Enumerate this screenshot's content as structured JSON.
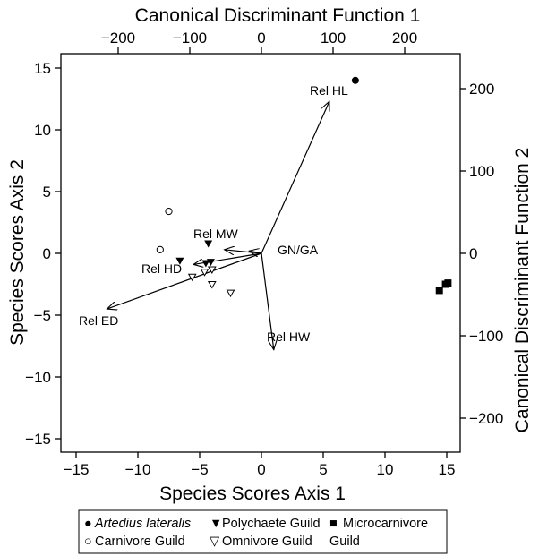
{
  "chart_data": {
    "type": "scatter",
    "x_label": "Species Scores Axis 1",
    "y_label": "Species Scores Axis 2",
    "x2_label": "Canonical Discriminant Function 1",
    "y2_label": "Canonical Discriminant Function 2",
    "xlim": [
      -16,
      17.5
    ],
    "ylim": [
      -16,
      16
    ],
    "x_ticks": [
      -15,
      -10,
      -5,
      0,
      5,
      10,
      15
    ],
    "y_ticks": [
      15,
      10,
      5,
      0,
      -5,
      -10,
      -15
    ],
    "x2_ticks": [
      -200,
      -100,
      0,
      100,
      200
    ],
    "y2_ticks": [
      200,
      100,
      0,
      -100,
      -200
    ],
    "x_tick_labels": [
      "−15",
      "−10",
      "−5",
      "0",
      "5",
      "10",
      "15"
    ],
    "y_tick_labels": [
      "15",
      "10",
      "5",
      "0",
      "−5",
      "−10",
      "−15"
    ],
    "x2_tick_labels": [
      "−200",
      "−100",
      "0",
      "100",
      "200"
    ],
    "y2_tick_labels": [
      "200",
      "100",
      "0",
      "−100",
      "−200"
    ],
    "vectors": [
      {
        "label": "Rel HL",
        "x": 5.5,
        "y": 12.3
      },
      {
        "label": "Rel MW",
        "x": -3.0,
        "y": 0.3
      },
      {
        "label": "GN/GA",
        "x": -1.0,
        "y": 0.2
      },
      {
        "label": "Rel HD",
        "x": -5.5,
        "y": -0.9
      },
      {
        "label": "Rel ED",
        "x": -12.5,
        "y": -4.5
      },
      {
        "label": "Rel HW",
        "x": 1.0,
        "y": -7.8
      }
    ],
    "series": [
      {
        "name": "Artedius lateralis",
        "marker": "filled-circle",
        "points": [
          [
            7.6,
            14.0
          ]
        ]
      },
      {
        "name": "Carnivore Guild",
        "marker": "open-circle",
        "points": [
          [
            -7.5,
            3.4
          ],
          [
            -8.2,
            0.3
          ]
        ]
      },
      {
        "name": "Polychaete Guild",
        "marker": "filled-triangle-down",
        "points": [
          [
            -6.6,
            -0.6
          ],
          [
            -4.5,
            -0.8
          ],
          [
            -4.1,
            -0.7
          ],
          [
            -4.3,
            0.8
          ]
        ]
      },
      {
        "name": "Omnivore Guild",
        "marker": "open-triangle-down",
        "points": [
          [
            -5.6,
            -1.9
          ],
          [
            -4.6,
            -1.5
          ],
          [
            -4.0,
            -1.3
          ],
          [
            -4.0,
            -2.5
          ],
          [
            -2.5,
            -3.2
          ]
        ]
      },
      {
        "name": "Microcarnivore Guild",
        "marker": "filled-square",
        "points": [
          [
            14.4,
            -3.0
          ],
          [
            14.9,
            -2.5
          ],
          [
            15.1,
            -2.4
          ]
        ]
      }
    ],
    "legend": {
      "position": "bottom",
      "items": [
        {
          "label": "Artedius lateralis",
          "symbol": "●"
        },
        {
          "label": "Polychaete Guild",
          "symbol": "▼"
        },
        {
          "label": "Microcarnivore",
          "symbol": "■"
        },
        {
          "label": "Carnivore Guild",
          "symbol": "○"
        },
        {
          "label": "Omnivore Guild",
          "symbol": "▽"
        },
        {
          "label": "Guild",
          "symbol": ""
        }
      ]
    }
  }
}
